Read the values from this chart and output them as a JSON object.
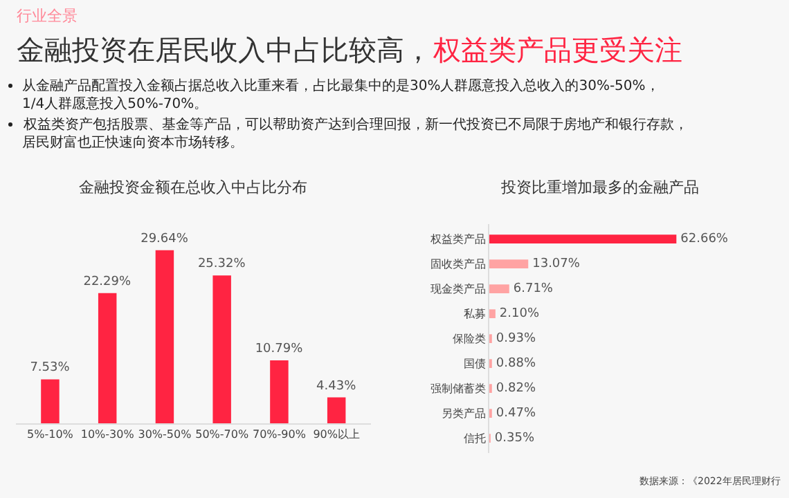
{
  "chart_data": [
    {
      "type": "bar",
      "title": "金融投资金额在总收入中占比分布",
      "annotations": [
        "行业全景",
        "金融投资在居民收入中占比较高，",
        "权益类产品更受关注",
        "从金融产品配置投入金额占据总收入比重来看，占比最集中的是30%人群愿意投入总收入的30%-50%，",
        "1/4人群愿意投入50%-70%。",
        "权益类资产包括股票、基金等产品，可以帮助资产达到合理回报，新一代投资已不局限于房地产和银行存款，",
        "居民财富也正快速向资本市场转移。"
      ],
      "categories": [
        "5%-10%",
        "10%-30%",
        "30%-50%",
        "50%-70%",
        "70%-90%",
        "90%以上"
      ],
      "values": [
        7.53,
        22.29,
        29.64,
        25.32,
        10.79,
        4.43
      ],
      "value_labels": [
        "7.53%",
        "22.29%",
        "29.64%",
        "25.32%",
        "10.79%",
        "4.43%"
      ],
      "color": "#ff2442",
      "tick_labels": "x",
      "grid": false,
      "legend": false
    },
    {
      "type": "bar",
      "orientation": "horizontal",
      "title": "投资比重增加最多的金融产品",
      "annotations": [
        "数据来源：《2022年居民理财行"
      ],
      "categories": [
        "权益类产品",
        "固收类产品",
        "现金类产品",
        "私募",
        "保险类",
        "国债",
        "强制储蓄类",
        "另类产品",
        "信托"
      ],
      "values": [
        62.66,
        13.07,
        6.71,
        2.1,
        0.93,
        0.88,
        0.82,
        0.47,
        0.35
      ],
      "value_labels": [
        "62.66%",
        "13.07%",
        "6.71%",
        "2.10%",
        "0.93%",
        "0.88%",
        "0.82%",
        "0.47%",
        "0.35%"
      ],
      "colors": [
        "#ff2442",
        "#ffa3a3",
        "#ffa3a3",
        "#ffa3a3",
        "#ffa3a3",
        "#ffa3a3",
        "#ffa3a3",
        "#ffa3a3",
        "#ffa3a3"
      ],
      "tick_labels": "y",
      "grid": false,
      "legend": false
    }
  ]
}
